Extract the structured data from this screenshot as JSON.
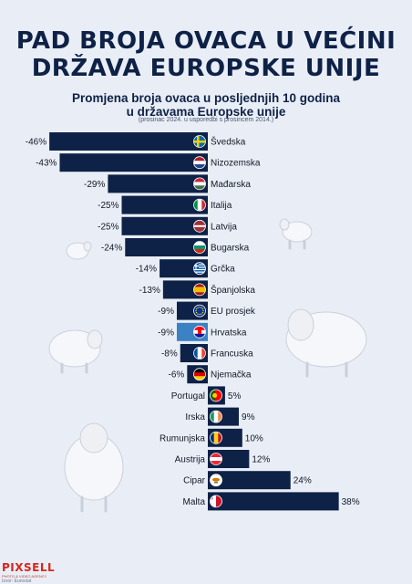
{
  "title_line1": "PAD BROJA OVACA U VEĆINI",
  "title_line2": "DRŽAVA EUROPSKE UNIJE",
  "brand": {
    "logo": "PIXSELL",
    "logo_sub": "PHOTO & VIDEO AGENCY",
    "source": "Izvor: Eurostat"
  },
  "colors": {
    "background": "#e9eef6",
    "bar": "#0e2146",
    "highlight_bar": "#3b82c4",
    "title": "#0e2146"
  },
  "chart_data": {
    "type": "bar",
    "orientation": "horizontal",
    "title": "Promjena broja ovaca u posljednjih 10 godina",
    "title_line2": "u državama Europske unije",
    "subtitle": "(prosinac 2024. u usporedbi s prosincem 2014.)",
    "unit": "%",
    "xlim": [
      -46,
      38
    ],
    "highlight": "Hrvatska",
    "categories": [
      "Švedska",
      "Nizozemska",
      "Mađarska",
      "Italija",
      "Latvija",
      "Bugarska",
      "Grčka",
      "Španjolska",
      "EU prosjek",
      "Hrvatska",
      "Francuska",
      "Njemačka",
      "Portugal",
      "Irska",
      "Rumunjska",
      "Austrija",
      "Cipar",
      "Malta"
    ],
    "values": [
      -46,
      -43,
      -29,
      -25,
      -25,
      -24,
      -14,
      -13,
      -9,
      -9,
      -8,
      -6,
      5,
      9,
      10,
      12,
      24,
      38
    ],
    "value_labels": [
      "-46%",
      "-43%",
      "-29%",
      "-25%",
      "-25%",
      "-24%",
      "-14%",
      "-13%",
      "-9%",
      "-9%",
      "-8%",
      "-6%",
      "5%",
      "9%",
      "10%",
      "12%",
      "24%",
      "38%"
    ],
    "flag_icons": [
      "flag-se-icon",
      "flag-nl-icon",
      "flag-hu-icon",
      "flag-it-icon",
      "flag-lv-icon",
      "flag-bg-icon",
      "flag-gr-icon",
      "flag-es-icon",
      "flag-eu-icon",
      "flag-hr-icon",
      "flag-fr-icon",
      "flag-de-icon",
      "flag-pt-icon",
      "flag-ie-icon",
      "flag-ro-icon",
      "flag-at-icon",
      "flag-cy-icon",
      "flag-mt-icon"
    ]
  }
}
